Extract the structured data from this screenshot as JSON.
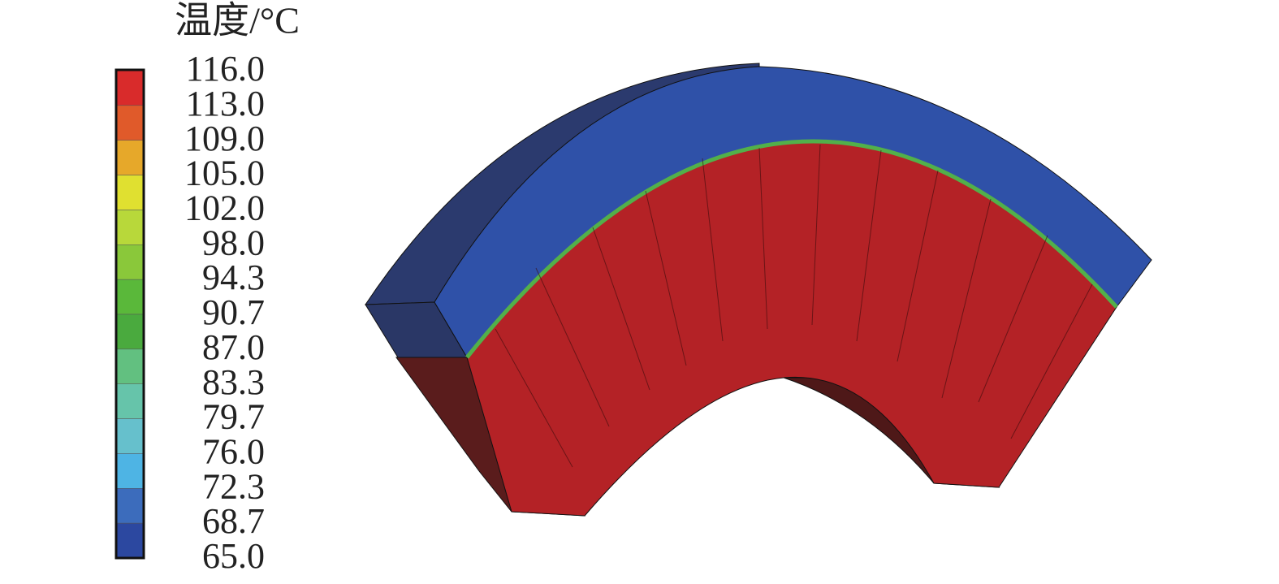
{
  "legend": {
    "title": "温度/°C",
    "levels": [
      {
        "value": 116.0,
        "label": "116.0"
      },
      {
        "value": 113.0,
        "label": "113.0"
      },
      {
        "value": 109.0,
        "label": "109.0"
      },
      {
        "value": 105.0,
        "label": "105.0"
      },
      {
        "value": 102.0,
        "label": "102.0"
      },
      {
        "value": 98.0,
        "label": "98.0"
      },
      {
        "value": 94.3,
        "label": "94.3"
      },
      {
        "value": 90.7,
        "label": "90.7"
      },
      {
        "value": 87.0,
        "label": "87.0"
      },
      {
        "value": 83.3,
        "label": "83.3"
      },
      {
        "value": 79.7,
        "label": "79.7"
      },
      {
        "value": 76.0,
        "label": "76.0"
      },
      {
        "value": 72.3,
        "label": "72.3"
      },
      {
        "value": 68.7,
        "label": "68.7"
      },
      {
        "value": 65.0,
        "label": "65.0"
      }
    ],
    "colors": [
      "#d92b2b",
      "#e05a2a",
      "#e6a82a",
      "#e0e030",
      "#b8d83a",
      "#8ac83a",
      "#5ab83a",
      "#4aaa3e",
      "#62c080",
      "#66c4aa",
      "#66c0cc",
      "#4eb4e4",
      "#3c6cbc",
      "#2c48a0"
    ]
  }
}
